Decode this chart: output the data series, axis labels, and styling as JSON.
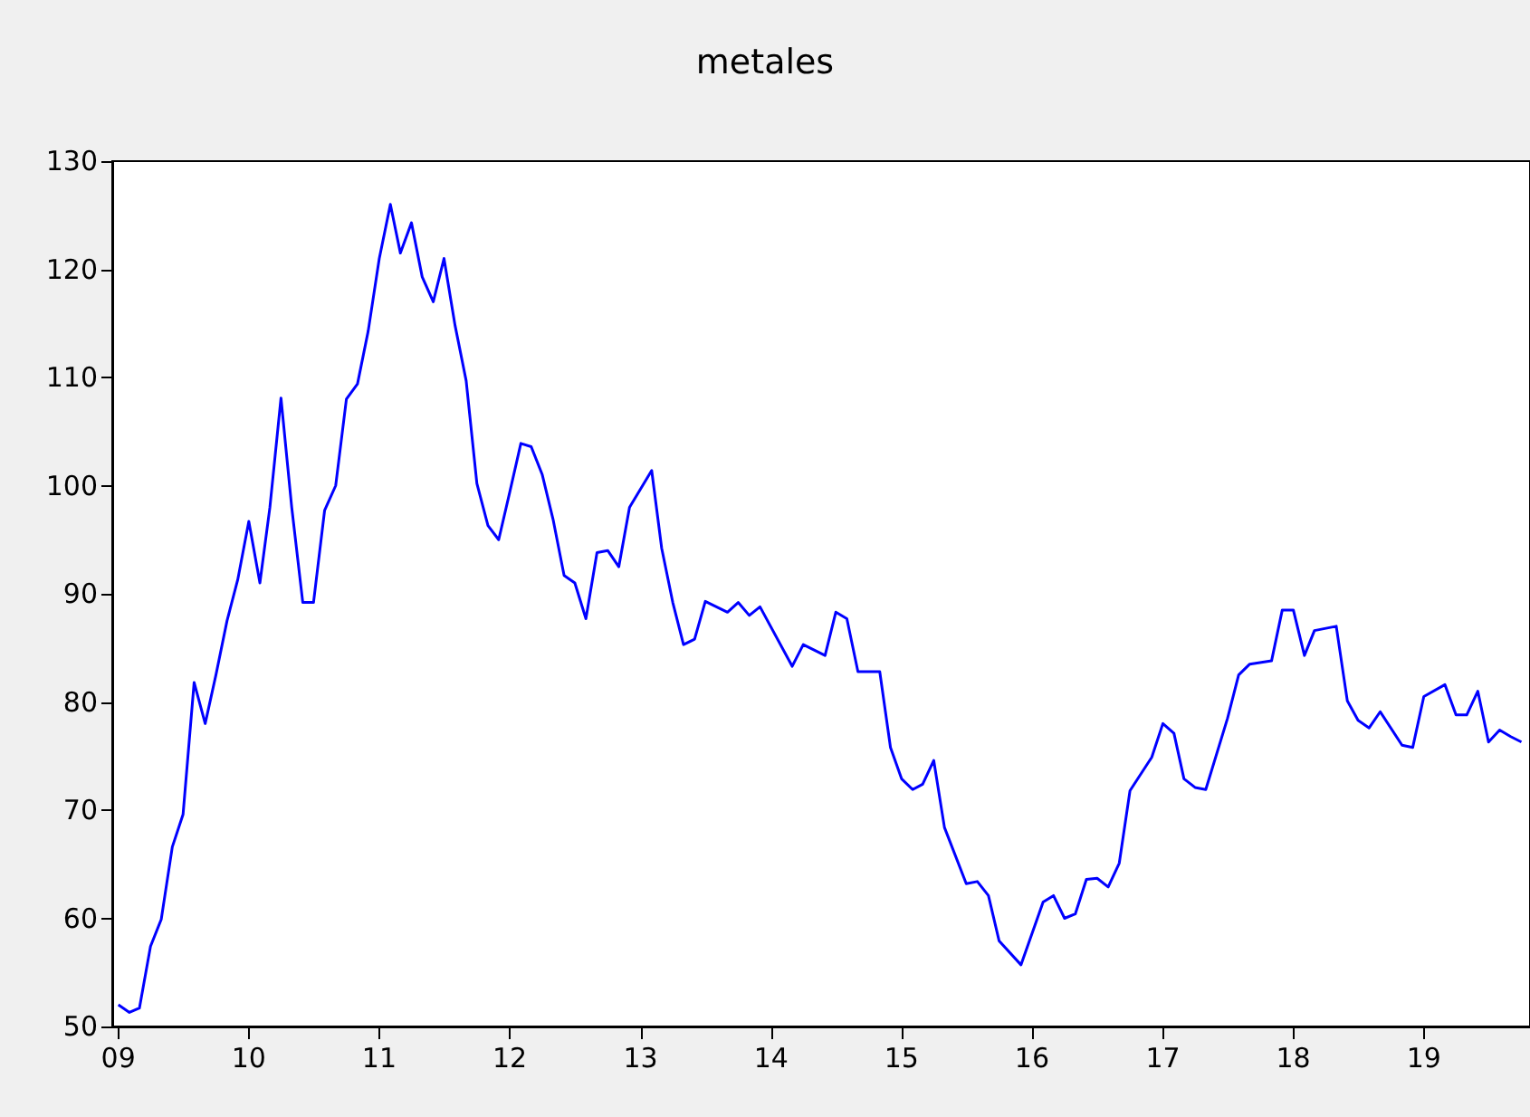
{
  "chart_data": {
    "type": "line",
    "title": "metales",
    "x": [
      "2009-01",
      "2009-02",
      "2009-03",
      "2009-04",
      "2009-05",
      "2009-06",
      "2009-07",
      "2009-08",
      "2009-09",
      "2009-10",
      "2009-11",
      "2009-12",
      "2010-01",
      "2010-02",
      "2010-03",
      "2010-04",
      "2010-05",
      "2010-06",
      "2010-07",
      "2010-08",
      "2010-09",
      "2010-10",
      "2010-11",
      "2010-12",
      "2011-01",
      "2011-02",
      "2011-03",
      "2011-04",
      "2011-05",
      "2011-06",
      "2011-07",
      "2011-08",
      "2011-09",
      "2011-10",
      "2011-11",
      "2011-12",
      "2012-01",
      "2012-02",
      "2012-03",
      "2012-04",
      "2012-05",
      "2012-06",
      "2012-07",
      "2012-08",
      "2012-09",
      "2012-10",
      "2012-11",
      "2012-12",
      "2013-02",
      "2013-03",
      "2013-04",
      "2013-05",
      "2013-06",
      "2013-07",
      "2013-09",
      "2013-10",
      "2013-11",
      "2013-12",
      "2014-03",
      "2014-04",
      "2014-06",
      "2014-07",
      "2014-08",
      "2014-09",
      "2014-11",
      "2014-12",
      "2015-01",
      "2015-02",
      "2015-03",
      "2015-04",
      "2015-05",
      "2015-07",
      "2015-08",
      "2015-09",
      "2015-10",
      "2015-12",
      "2016-02",
      "2016-03",
      "2016-04",
      "2016-05",
      "2016-06",
      "2016-07",
      "2016-08",
      "2016-09",
      "2016-10",
      "2016-12",
      "2017-01",
      "2017-02",
      "2017-03",
      "2017-04",
      "2017-05",
      "2017-07",
      "2017-08",
      "2017-09",
      "2017-11",
      "2017-12",
      "2018-01",
      "2018-02",
      "2018-03",
      "2018-05",
      "2018-06",
      "2018-07",
      "2018-08",
      "2018-09",
      "2018-11",
      "2018-12",
      "2019-01",
      "2019-03",
      "2019-04",
      "2019-05",
      "2019-06",
      "2019-07",
      "2019-08",
      "2019-09",
      "2019-10"
    ],
    "series": [
      {
        "color": "#0000ff",
        "values": [
          52.0,
          51.3,
          51.7,
          57.4,
          59.9,
          66.6,
          69.6,
          81.8,
          78.0,
          82.5,
          87.5,
          91.3,
          96.7,
          91.0,
          98.0,
          108.1,
          98.0,
          89.2,
          89.2,
          97.7,
          100.0,
          108.0,
          109.4,
          114.3,
          121.0,
          126.0,
          121.5,
          124.3,
          119.3,
          117.0,
          121.0,
          114.8,
          109.7,
          100.2,
          96.3,
          95.0,
          99.4,
          103.9,
          103.6,
          101.0,
          96.9,
          91.7,
          91.0,
          87.7,
          93.8,
          94.0,
          92.5,
          98.0,
          101.4,
          94.2,
          89.2,
          85.3,
          85.8,
          89.3,
          88.3,
          89.2,
          88.0,
          88.8,
          83.3,
          85.3,
          84.3,
          88.3,
          87.7,
          82.8,
          82.8,
          75.8,
          72.9,
          71.9,
          72.4,
          74.6,
          68.4,
          63.2,
          63.4,
          62.1,
          57.9,
          55.7,
          61.5,
          62.1,
          60.0,
          60.4,
          63.6,
          63.7,
          62.9,
          65.1,
          71.8,
          74.9,
          78.0,
          77.1,
          72.9,
          72.1,
          71.9,
          78.5,
          82.5,
          83.5,
          83.8,
          88.5,
          88.5,
          84.3,
          86.6,
          87.0,
          80.1,
          78.3,
          77.6,
          79.1,
          76.0,
          75.8,
          80.5,
          81.6,
          78.8,
          78.8,
          81.0,
          76.3,
          77.4,
          76.8,
          76.3
        ]
      }
    ],
    "xlim": [
      "2008-12-15",
      "2019-10-25"
    ],
    "xticks": [
      {
        "value": "2009-01",
        "label": "09"
      },
      {
        "value": "2010-01",
        "label": "10"
      },
      {
        "value": "2011-01",
        "label": "11"
      },
      {
        "value": "2012-01",
        "label": "12"
      },
      {
        "value": "2013-01",
        "label": "13"
      },
      {
        "value": "2014-01",
        "label": "14"
      },
      {
        "value": "2015-01",
        "label": "15"
      },
      {
        "value": "2016-01",
        "label": "16"
      },
      {
        "value": "2017-01",
        "label": "17"
      },
      {
        "value": "2018-01",
        "label": "18"
      },
      {
        "value": "2019-01",
        "label": "19"
      }
    ],
    "ylim": [
      50,
      130
    ],
    "yticks": [
      50,
      60,
      70,
      80,
      90,
      100,
      110,
      120,
      130
    ],
    "marker": "none",
    "line_style": "solid"
  }
}
